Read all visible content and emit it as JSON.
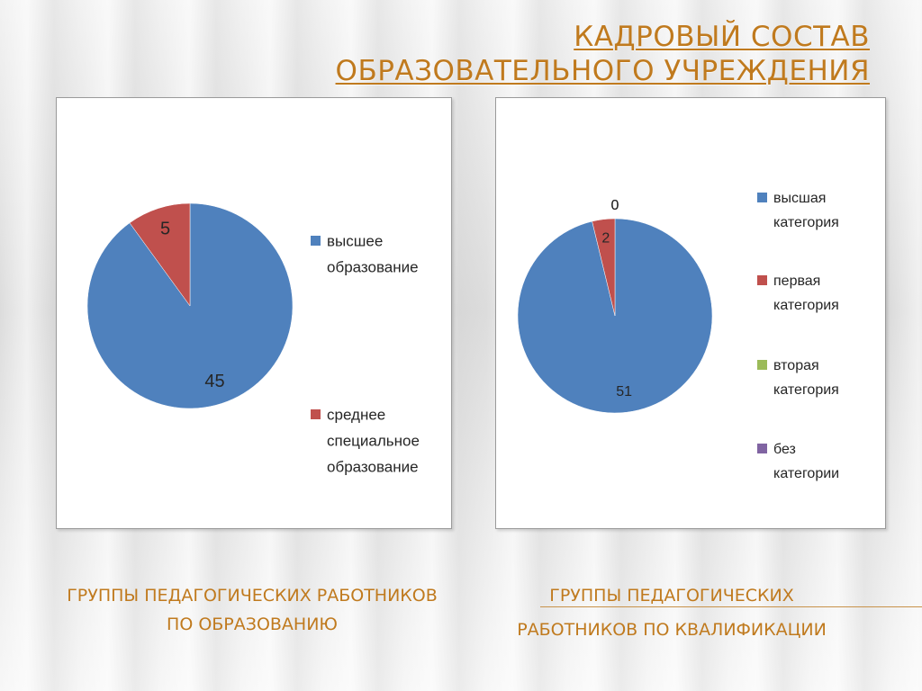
{
  "title": {
    "line1": "Кадровый состав",
    "line2": "образовательного учреждения"
  },
  "captions": {
    "left": "Группы педагогических работников по образованию",
    "right_line1": "Группы педагогических",
    "right_line2": "работников по квалификации"
  },
  "chart_data": [
    {
      "type": "pie",
      "categories": [
        "высшее образование",
        "среднее специальное образование"
      ],
      "values": [
        45,
        5
      ],
      "data_labels": [
        "45",
        "5"
      ],
      "legend_lines": [
        [
          "высшее",
          "образование"
        ],
        [
          "среднее",
          "специальное",
          "образование"
        ]
      ],
      "colors": [
        "#4f81bd",
        "#c0504d"
      ],
      "legend": "right"
    },
    {
      "type": "pie",
      "categories": [
        "высшая категория",
        "первая категория",
        "вторая категория",
        "без категории"
      ],
      "values": [
        51,
        2,
        0,
        0
      ],
      "data_labels": [
        "51",
        "2",
        "0",
        "0"
      ],
      "legend_lines": [
        [
          "высшая",
          "категория"
        ],
        [
          "первая",
          "категория"
        ],
        [
          "вторая",
          "категория"
        ],
        [
          "без",
          "категории"
        ]
      ],
      "colors": [
        "#4f81bd",
        "#c0504d",
        "#9bbb59",
        "#8064a2"
      ],
      "legend": "right"
    }
  ]
}
